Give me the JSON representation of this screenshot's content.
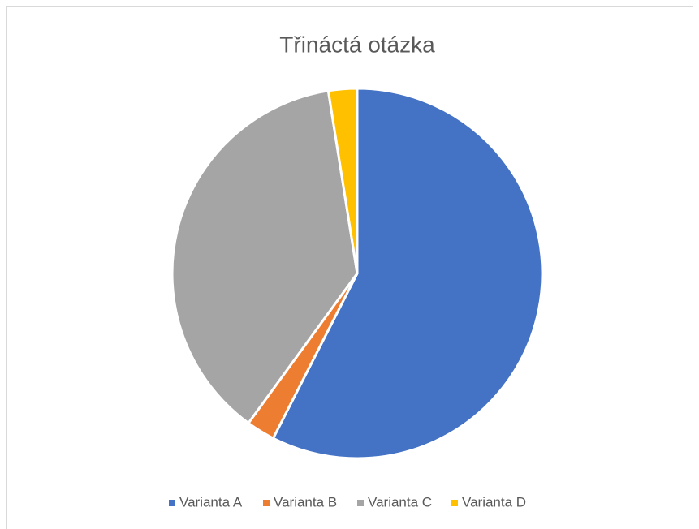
{
  "chart_data": {
    "type": "pie",
    "title": "Třináctá otázka",
    "categories": [
      "Varianta A",
      "Varianta B",
      "Varianta C",
      "Varianta D"
    ],
    "values": [
      57.5,
      2.5,
      37.5,
      2.5
    ],
    "colors": [
      "#4472c4",
      "#ed7d31",
      "#a5a5a5",
      "#ffc000"
    ],
    "legend": "bottom"
  }
}
